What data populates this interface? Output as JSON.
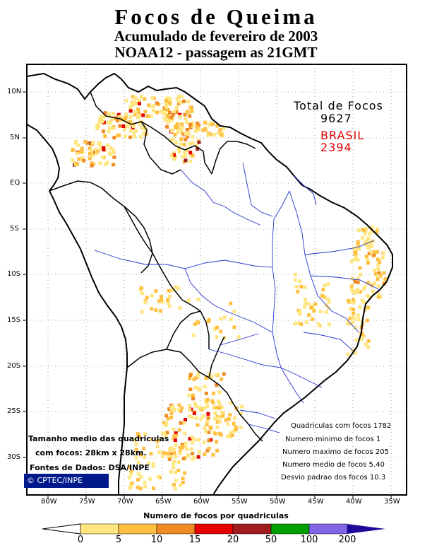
{
  "title": {
    "line1": "Focos de Queima",
    "line2": "Acumulado de fevereiro de 2003",
    "line3": "NOAA12 - passagem as 21GMT"
  },
  "lat_labels": [
    "10N",
    "5N",
    "EQ",
    "5S",
    "10S",
    "15S",
    "20S",
    "25S",
    "30S"
  ],
  "lon_labels": [
    "80W",
    "75W",
    "70W",
    "65W",
    "60W",
    "55W",
    "50W",
    "45W",
    "40W",
    "35W"
  ],
  "totals": {
    "title": "Total de Focos",
    "value": "9627",
    "brasil_label": "BRASIL",
    "brasil_value": "2394"
  },
  "stats": {
    "quadriculas": "Quadriculas com focos 1782",
    "minimo": "Numero minimo de focos 1",
    "maximo": "Numero maximo de focos 205",
    "medio": "Numero medio de focos 5.40",
    "desvio": "Desvio padrao dos focos 10.3"
  },
  "notes": {
    "tamanho1": "Tamanho medio das quadriculas",
    "tamanho2": "com focos: 28km x 28km.",
    "fontes": "Fontes de Dados: DSA/INPE"
  },
  "credit": "©  CPTEC/INPE",
  "legend": {
    "title": "Numero de focos por quadriculas",
    "ticks": [
      "0",
      "5",
      "10",
      "15",
      "20",
      "50",
      "100",
      "200"
    ],
    "colors": [
      "#ffe680",
      "#ffbf40",
      "#f08a24",
      "#e60000",
      "#a01e1e",
      "#00a000",
      "#8066e6",
      "#1e0a99"
    ]
  },
  "colors": {
    "coast": "#000000",
    "borders": "#2233cc",
    "grid": "#555555"
  }
}
